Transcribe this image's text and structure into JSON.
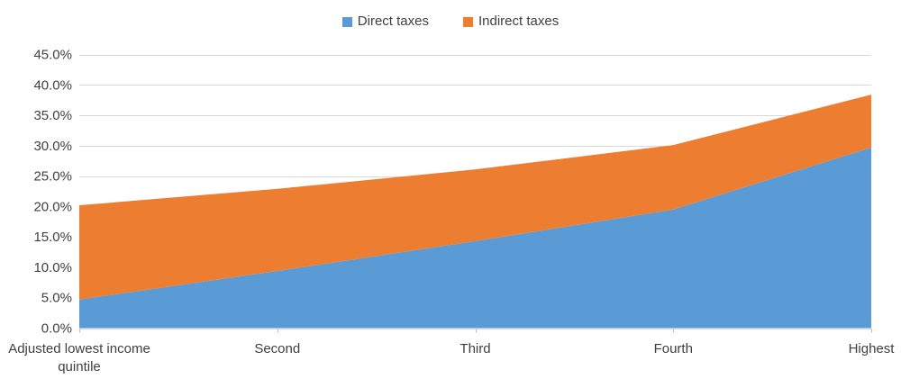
{
  "chart_data": {
    "type": "area",
    "stacked": true,
    "title": "",
    "xlabel": "",
    "ylabel": "",
    "categories": [
      {
        "label": "Adjusted lowest income quintile",
        "lines": [
          "Adjusted lowest income",
          "quintile"
        ]
      },
      {
        "label": "Second",
        "lines": [
          "Second"
        ]
      },
      {
        "label": "Third",
        "lines": [
          "Third"
        ]
      },
      {
        "label": "Fourth",
        "lines": [
          "Fourth"
        ]
      },
      {
        "label": "Highest",
        "lines": [
          "Highest"
        ]
      }
    ],
    "series": [
      {
        "name": "Direct taxes",
        "color": "#5B9BD5",
        "values": [
          4.7,
          9.4,
          14.3,
          19.5,
          29.7
        ]
      },
      {
        "name": "Indirect taxes",
        "color": "#ED7D31",
        "values": [
          15.5,
          13.5,
          11.8,
          10.6,
          8.7
        ]
      }
    ],
    "stacked_totals": [
      20.2,
      22.9,
      26.1,
      30.1,
      38.4
    ],
    "ylim": [
      0,
      45
    ],
    "ytick_step": 5,
    "ytick_labels": [
      "0.0%",
      "5.0%",
      "10.0%",
      "15.0%",
      "20.0%",
      "25.0%",
      "30.0%",
      "35.0%",
      "40.0%",
      "45.0%"
    ],
    "grid": true,
    "legend_position": "top-center",
    "gridline_color": "#D9D9D9",
    "axis_line_color": "#BFBFBF",
    "text_color": "#404040",
    "background_color": "#FFFFFF"
  }
}
